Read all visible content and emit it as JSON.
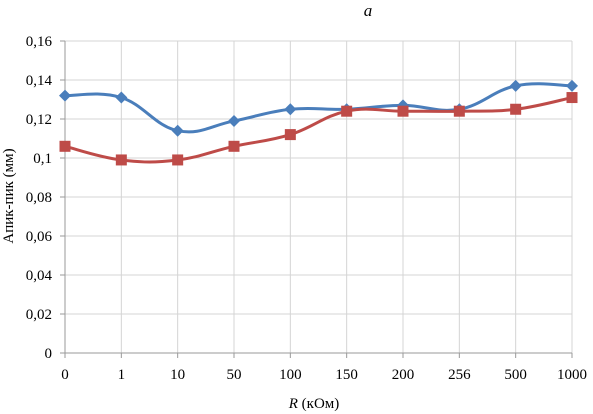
{
  "chart_data": {
    "type": "line",
    "title": "а",
    "xlabel_var": "R",
    "xlabel_unit": " (кОм)",
    "ylabel": "Апик-пик (мм)",
    "categories": [
      "0",
      "1",
      "10",
      "50",
      "100",
      "150",
      "200",
      "256",
      "500",
      "1000"
    ],
    "y_ticks": [
      "0",
      "0,02",
      "0,04",
      "0,06",
      "0,08",
      "0,1",
      "0,12",
      "0,14",
      "0,16"
    ],
    "ylim": [
      0,
      0.16
    ],
    "grid": true,
    "series": [
      {
        "marker": "diamond",
        "color": "#4a7ebb",
        "values": [
          0.132,
          0.131,
          0.114,
          0.119,
          0.125,
          0.125,
          0.127,
          0.125,
          0.137,
          0.137
        ]
      },
      {
        "marker": "square",
        "color": "#be4b48",
        "values": [
          0.106,
          0.099,
          0.099,
          0.106,
          0.112,
          0.124,
          0.124,
          0.124,
          0.125,
          0.131
        ]
      }
    ]
  }
}
